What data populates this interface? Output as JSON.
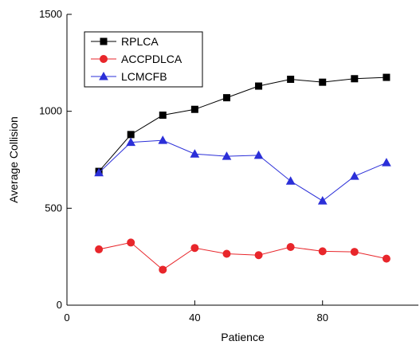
{
  "chart_data": {
    "type": "line",
    "title": "",
    "xlabel": "Patience",
    "ylabel": "Average Collision",
    "xlim": [
      0,
      110
    ],
    "ylim": [
      0,
      1500
    ],
    "xticks": [
      0,
      40,
      80
    ],
    "yticks": [
      0,
      500,
      1000,
      1500
    ],
    "grid": false,
    "legend_position": "top-left",
    "x": [
      10,
      20,
      30,
      40,
      50,
      60,
      70,
      80,
      90,
      100
    ],
    "series": [
      {
        "name": "RPLCA",
        "color": "#000000",
        "marker": "square",
        "values": [
          690,
          880,
          980,
          1010,
          1070,
          1130,
          1165,
          1150,
          1168,
          1175
        ]
      },
      {
        "name": "ACCPDLCA",
        "color": "#e8262b",
        "marker": "circle",
        "values": [
          288,
          323,
          183,
          295,
          265,
          258,
          300,
          278,
          275,
          240
        ]
      },
      {
        "name": "LCMCFB",
        "color": "#2b2fd8",
        "marker": "triangle",
        "values": [
          683,
          840,
          850,
          780,
          768,
          773,
          640,
          538,
          665,
          735
        ]
      }
    ]
  }
}
